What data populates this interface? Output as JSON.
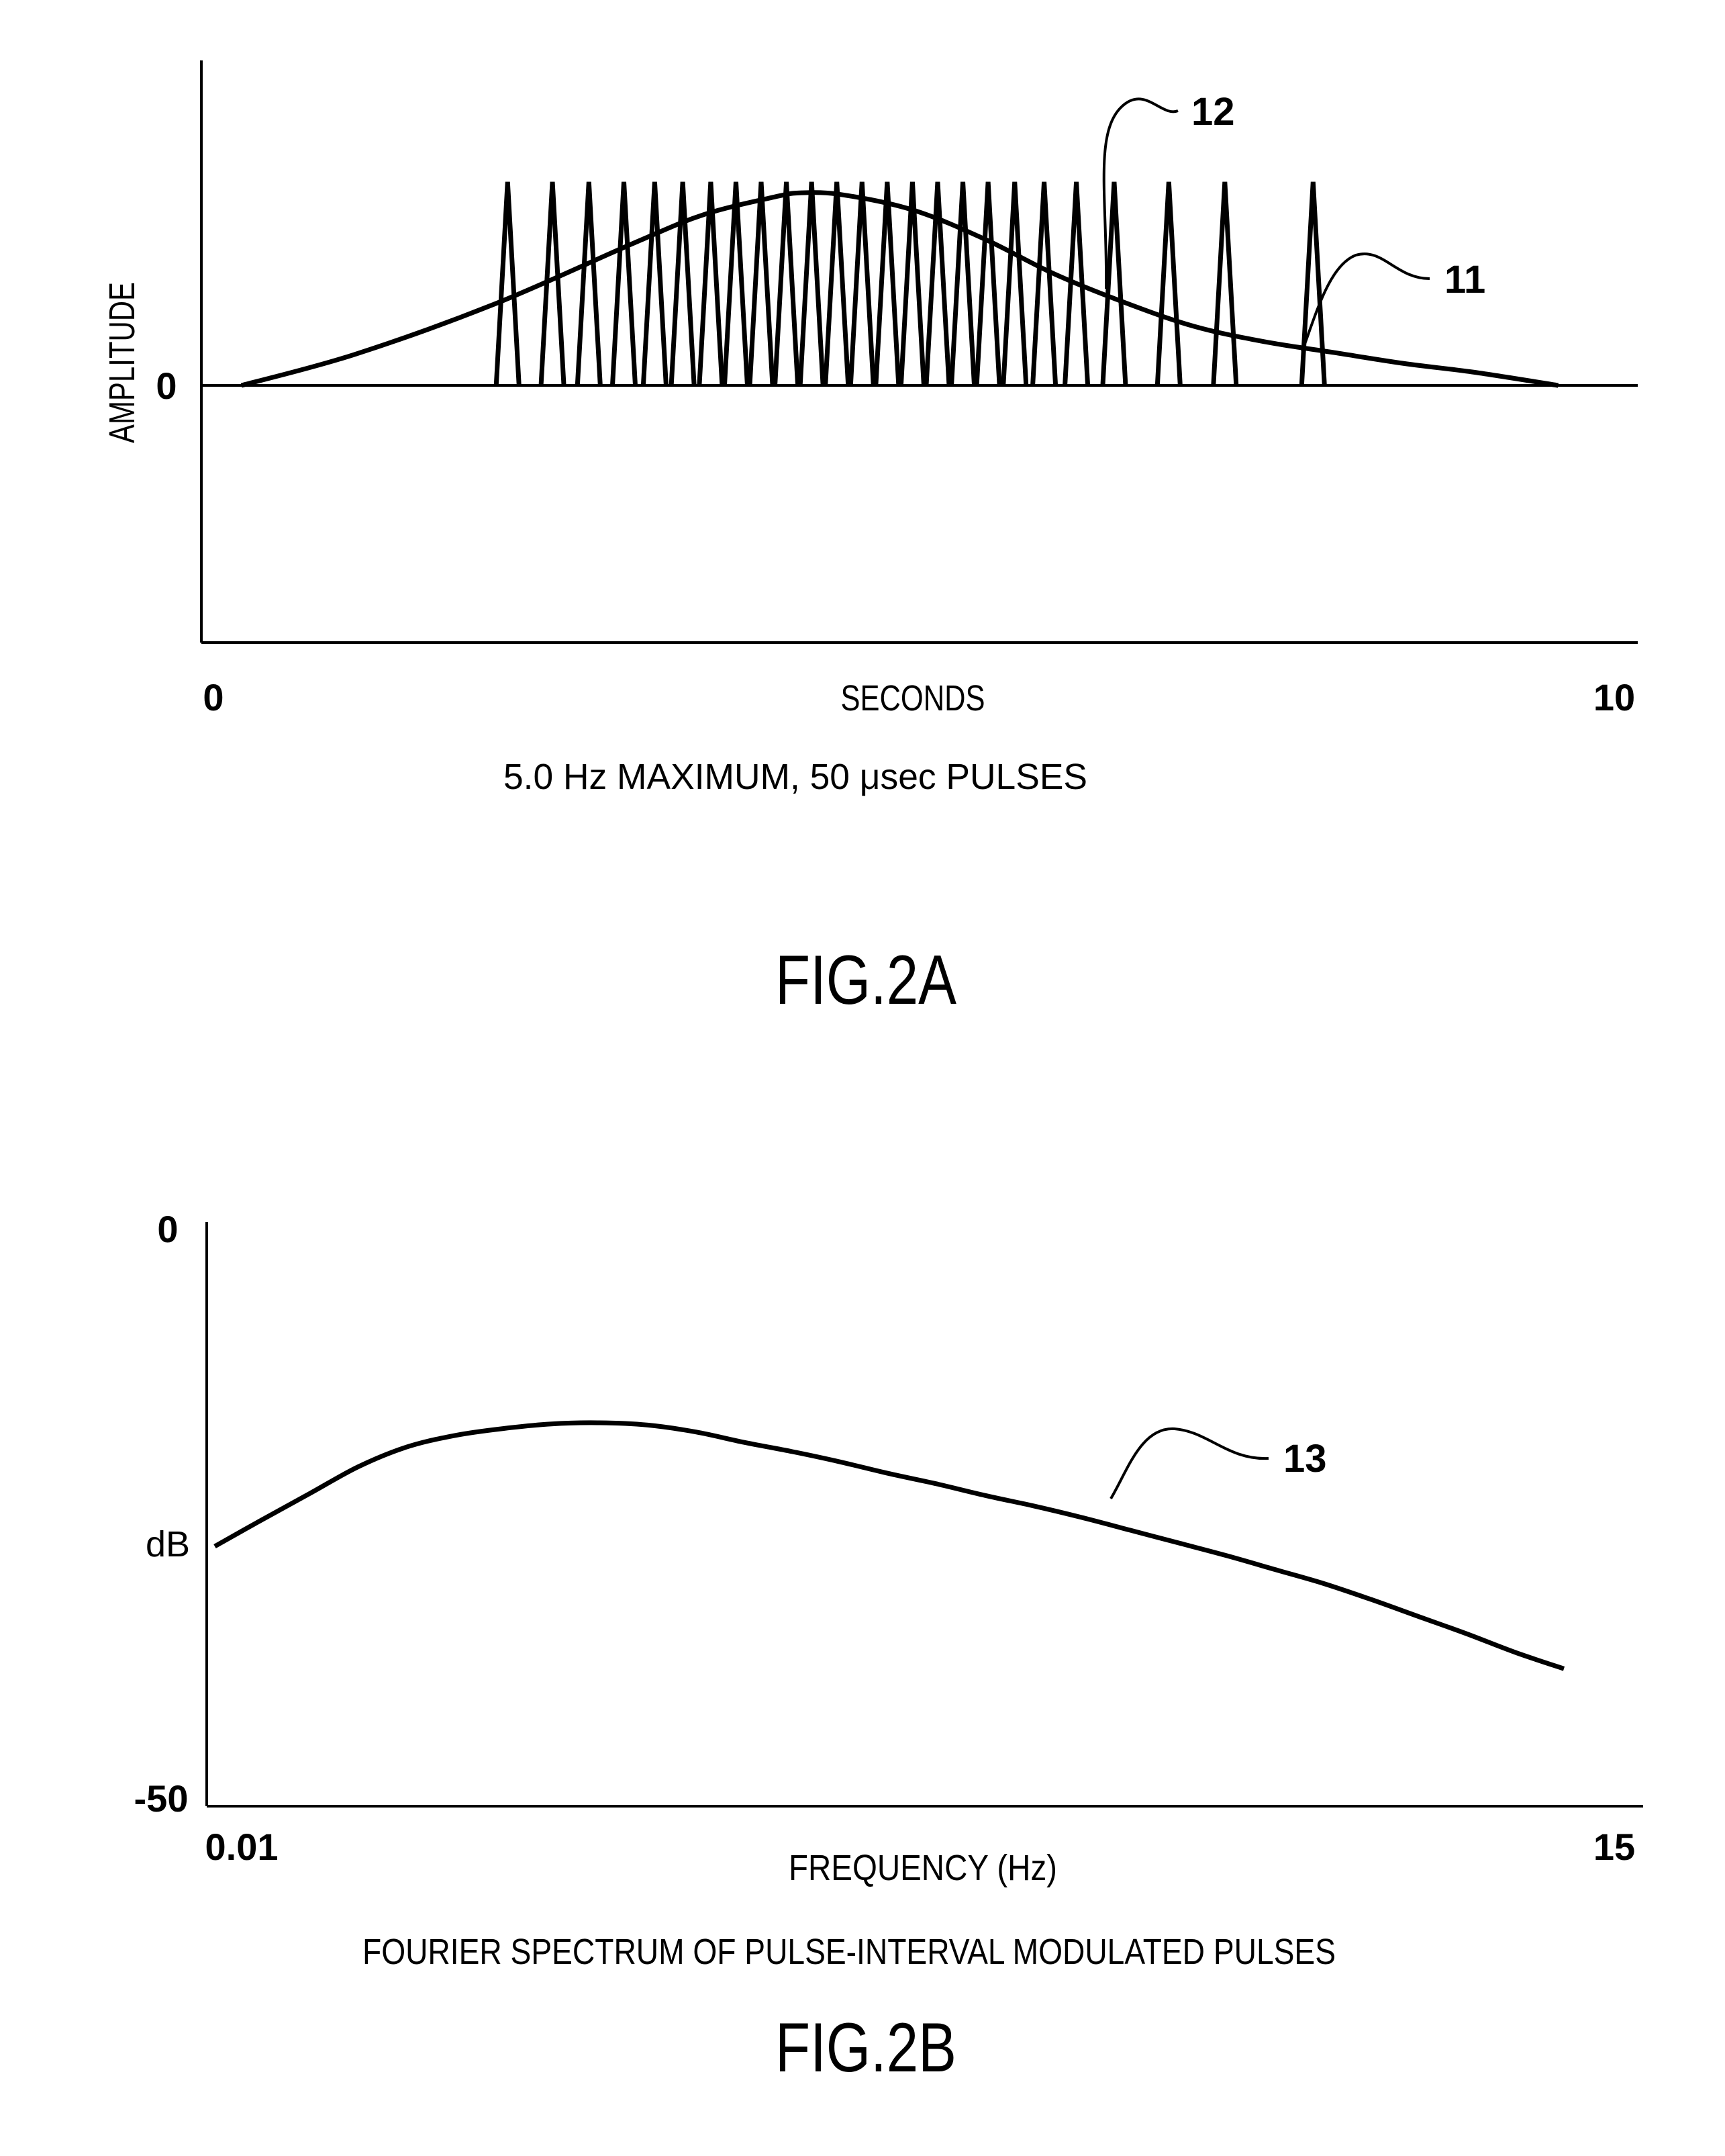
{
  "chart_data": [
    {
      "type": "line",
      "figure_label": "FIG.2A",
      "caption": "5.0 Hz MAXIMUM, 50 μsec PULSES",
      "xlabel": "SECONDS",
      "ylabel": "AMPLITUDE",
      "x_tick_labels": [
        "0",
        "10"
      ],
      "y_tick_labels": [
        "0"
      ],
      "xlim": [
        0,
        10
      ],
      "grid": false,
      "reference_labels": [
        {
          "id": "12",
          "target": "pulses"
        },
        {
          "id": "11",
          "target": "envelope"
        }
      ],
      "envelope": {
        "x": [
          0.2,
          1.0,
          2.0,
          3.0,
          3.5,
          4.0,
          4.2,
          4.5,
          5.0,
          5.5,
          6.0,
          6.5,
          7.0,
          7.5,
          8.0,
          8.5,
          9.0,
          9.6
        ],
        "y": [
          0.0,
          0.14,
          0.37,
          0.65,
          0.78,
          0.86,
          0.88,
          0.87,
          0.8,
          0.67,
          0.51,
          0.38,
          0.27,
          0.2,
          0.15,
          0.1,
          0.06,
          0.0
        ]
      },
      "pulses": {
        "times": [
          2.1,
          2.42,
          2.68,
          2.93,
          3.15,
          3.35,
          3.55,
          3.73,
          3.91,
          4.09,
          4.27,
          4.45,
          4.63,
          4.81,
          4.99,
          5.17,
          5.35,
          5.53,
          5.72,
          5.93,
          6.16,
          6.43,
          6.82,
          7.22,
          7.85
        ],
        "amplitude": 0.93
      }
    },
    {
      "type": "line",
      "figure_label": "FIG.2B",
      "caption": "FOURIER SPECTRUM OF PULSE-INTERVAL MODULATED PULSES",
      "xlabel": "FREQUENCY (Hz)",
      "ylabel": "dB",
      "x_tick_labels": [
        "0.01",
        "15"
      ],
      "y_tick_labels": [
        "0",
        "-50"
      ],
      "ylim": [
        -50,
        0
      ],
      "grid": false,
      "reference_labels": [
        {
          "id": "13",
          "target": "spectrum"
        }
      ],
      "spectrum": {
        "x": [
          0.01,
          0.5,
          1.0,
          1.5,
          2.0,
          2.5,
          3.0,
          3.5,
          4.0,
          4.5,
          5.0,
          5.5,
          6.0,
          6.5,
          7.0,
          7.5,
          8.0,
          8.5,
          9.0,
          9.5,
          10.0,
          10.5,
          11.0,
          11.5,
          12.0,
          12.5,
          13.0,
          13.5,
          14.0
        ],
        "y": [
          -27.5,
          -25.2,
          -22.9,
          -20.6,
          -18.9,
          -17.9,
          -17.3,
          -16.9,
          -16.8,
          -17.0,
          -17.6,
          -18.5,
          -19.3,
          -20.2,
          -21.2,
          -22.1,
          -23.1,
          -24.0,
          -25.0,
          -26.1,
          -27.2,
          -28.3,
          -29.5,
          -30.7,
          -32.1,
          -33.6,
          -35.1,
          -36.7,
          -38.1
        ]
      }
    }
  ]
}
